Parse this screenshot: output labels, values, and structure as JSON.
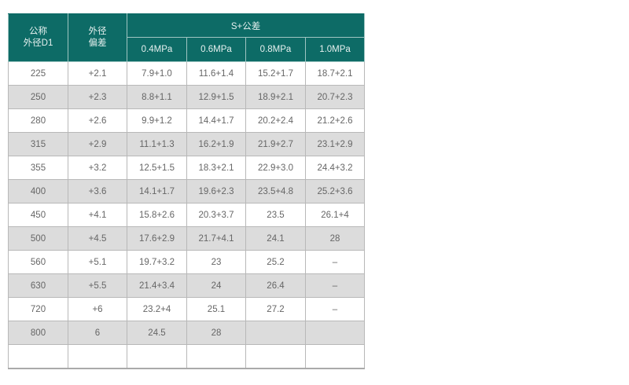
{
  "table": {
    "headers": {
      "nominal_od": [
        "公称",
        "外径D1"
      ],
      "od_tolerance": [
        "外径",
        "偏差"
      ],
      "group": "S+公差",
      "pressures": [
        "0.4MPa",
        "0.6MPa",
        "0.8MPa",
        "1.0MPa"
      ]
    },
    "rows": [
      [
        "225",
        "+2.1",
        "7.9+1.0",
        "11.6+1.4",
        "15.2+1.7",
        "18.7+2.1"
      ],
      [
        "250",
        "+2.3",
        "8.8+1.1",
        "12.9+1.5",
        "18.9+2.1",
        "20.7+2.3"
      ],
      [
        "280",
        "+2.6",
        "9.9+1.2",
        "14.4+1.7",
        "20.2+2.4",
        "21.2+2.6"
      ],
      [
        "315",
        "+2.9",
        "11.1+1.3",
        "16.2+1.9",
        "21.9+2.7",
        "23.1+2.9"
      ],
      [
        "355",
        "+3.2",
        "12.5+1.5",
        "18.3+2.1",
        "22.9+3.0",
        "24.4+3.2"
      ],
      [
        "400",
        "+3.6",
        "14.1+1.7",
        "19.6+2.3",
        "23.5+4.8",
        "25.2+3.6"
      ],
      [
        "450",
        "+4.1",
        "15.8+2.6",
        "20.3+3.7",
        "23.5",
        "26.1+4"
      ],
      [
        "500",
        "+4.5",
        "17.6+2.9",
        "21.7+4.1",
        "24.1",
        "28"
      ],
      [
        "560",
        "+5.1",
        "19.7+3.2",
        "23",
        "25.2",
        "–"
      ],
      [
        "630",
        "+5.5",
        "21.4+3.4",
        "24",
        "26.4",
        "–"
      ],
      [
        "720",
        "+6",
        "23.2+4",
        "25.1",
        "27.2",
        "–"
      ],
      [
        "800",
        "6",
        "24.5",
        "28",
        "",
        ""
      ],
      [
        "",
        "",
        "",
        "",
        "",
        ""
      ]
    ]
  },
  "colors": {
    "header_bg": "#0d6b66",
    "stripe": "#dcdcdc"
  }
}
